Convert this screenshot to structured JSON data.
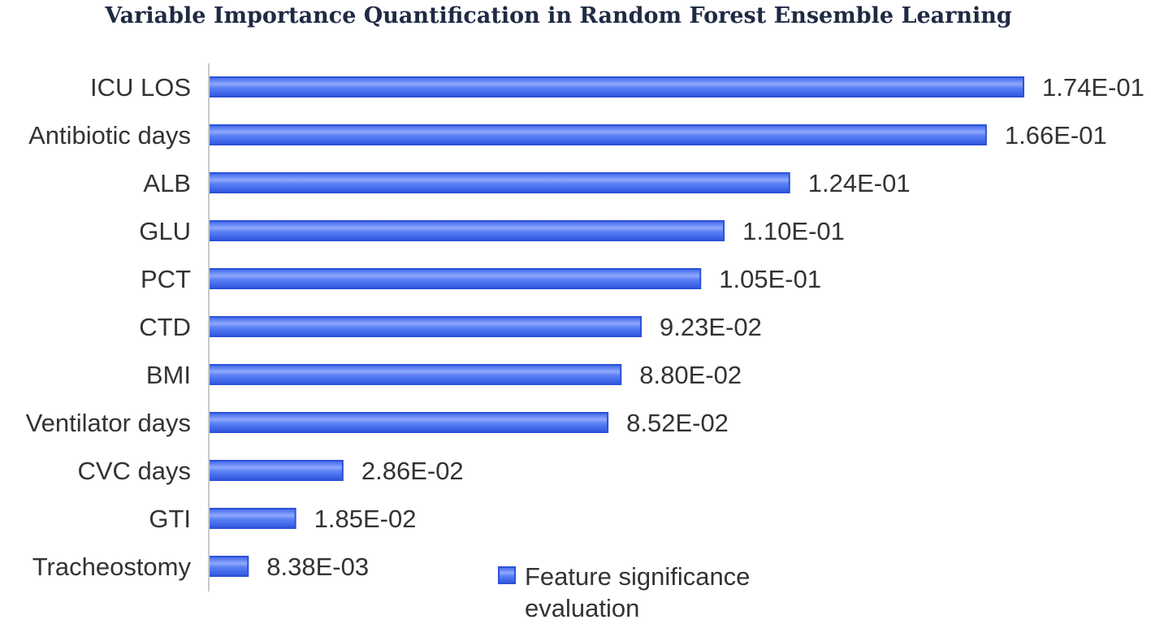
{
  "chart_data": {
    "type": "bar",
    "orientation": "horizontal",
    "title": "Variable Importance Quantification in Random Forest Ensemble Learning",
    "categories": [
      "ICU LOS",
      "Antibiotic days",
      "ALB",
      "GLU",
      "PCT",
      "CTD",
      "BMI",
      "Ventilator days",
      "CVC days",
      "GTI",
      "Tracheostomy"
    ],
    "values": [
      0.174,
      0.166,
      0.124,
      0.11,
      0.105,
      0.0923,
      0.088,
      0.0852,
      0.0286,
      0.0185,
      0.00838
    ],
    "value_labels": [
      "1.74E-01",
      "1.66E-01",
      "1.24E-01",
      "1.10E-01",
      "1.05E-01",
      "9.23E-02",
      "8.80E-02",
      "8.52E-02",
      "2.86E-02",
      "1.85E-02",
      "8.38E-03"
    ],
    "series": [
      {
        "name": "Feature significance evaluation",
        "values": [
          0.174,
          0.166,
          0.124,
          0.11,
          0.105,
          0.0923,
          0.088,
          0.0852,
          0.0286,
          0.0185,
          0.00838
        ]
      }
    ],
    "legend": {
      "text_line1": "Feature significance",
      "text_line2": "evaluation",
      "placement": "bottom-center"
    },
    "xlim": [
      0,
      0.18
    ],
    "grid": false,
    "colors": {
      "bar_fill": "#4a73f0",
      "bar_stroke": "#2d52d6",
      "bar_highlight": "#8fa9ff",
      "axis": "#c8c8c8"
    }
  }
}
